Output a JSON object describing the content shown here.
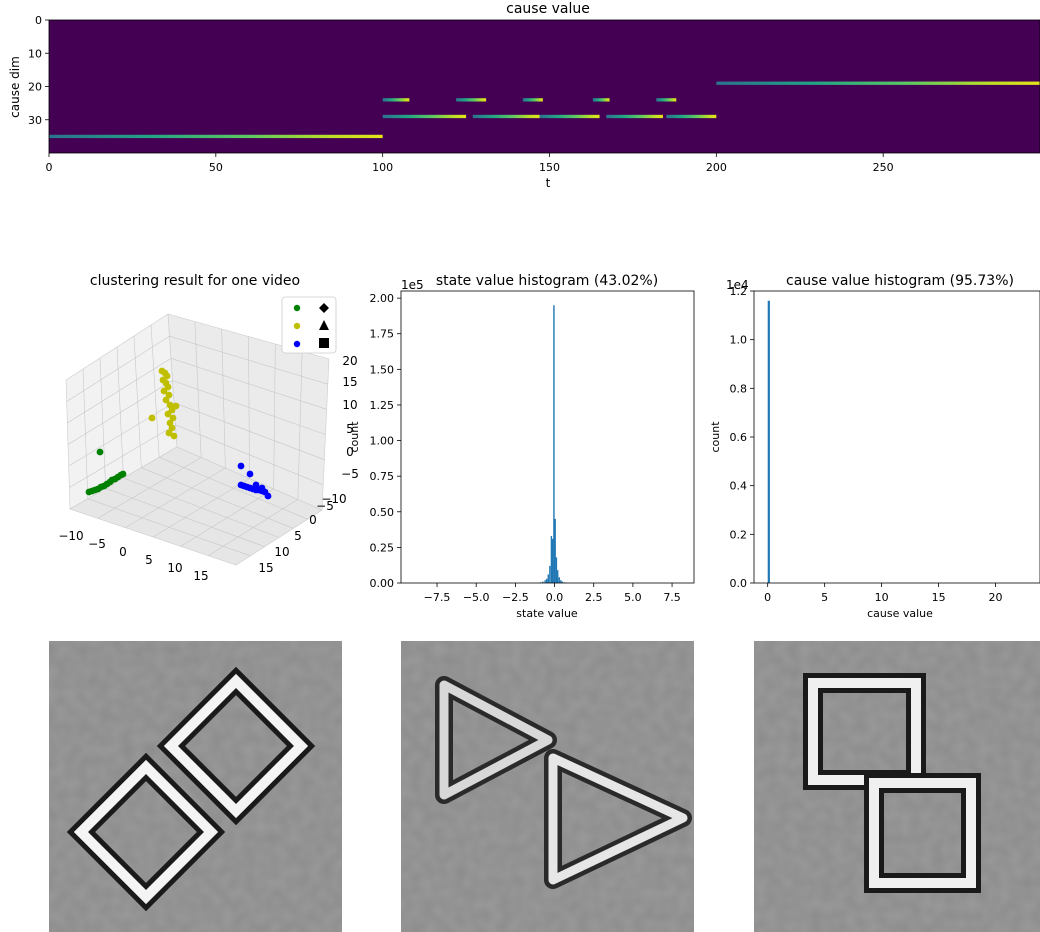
{
  "chart_data": [
    {
      "type": "heatmap",
      "title": "cause value",
      "xlabel": "t",
      "ylabel": "cause dim",
      "xlim": [
        0,
        297
      ],
      "ylim": [
        40,
        0
      ],
      "xticks": [
        "0",
        "50",
        "100",
        "150",
        "200",
        "250"
      ],
      "yticks": [
        "0",
        "10",
        "20",
        "30"
      ],
      "colormap": "viridis",
      "background_color": "#440154",
      "active_segments": [
        {
          "dim": 35,
          "t_start": 0,
          "t_end": 100
        },
        {
          "dim": 24,
          "t_start": 100,
          "t_end": 108
        },
        {
          "dim": 24,
          "t_start": 122,
          "t_end": 131
        },
        {
          "dim": 24,
          "t_start": 142,
          "t_end": 148
        },
        {
          "dim": 24,
          "t_start": 163,
          "t_end": 168
        },
        {
          "dim": 24,
          "t_start": 182,
          "t_end": 188
        },
        {
          "dim": 29,
          "t_start": 100,
          "t_end": 125
        },
        {
          "dim": 29,
          "t_start": 127,
          "t_end": 147
        },
        {
          "dim": 29,
          "t_start": 147,
          "t_end": 165
        },
        {
          "dim": 29,
          "t_start": 167,
          "t_end": 184
        },
        {
          "dim": 29,
          "t_start": 185,
          "t_end": 200
        },
        {
          "dim": 19,
          "t_start": 200,
          "t_end": 297
        }
      ]
    },
    {
      "type": "scatter",
      "title": "clustering result for one video",
      "projection": "3d",
      "xticks": [
        "−10",
        "−5",
        "0",
        "5",
        "10",
        "15"
      ],
      "yticks": [
        "−10",
        "−5",
        "0",
        "5",
        "10",
        "15"
      ],
      "zticks": [
        "−5",
        "0",
        "5",
        "10",
        "15",
        "20"
      ],
      "legend": [
        {
          "marker": "diamond",
          "color": "#000000"
        },
        {
          "marker": "triangle",
          "color": "#000000"
        },
        {
          "marker": "square",
          "color": "#000000"
        }
      ],
      "legend_placement": "top-right",
      "series": [
        {
          "color": "#008000"
        },
        {
          "color": "#bfbf00"
        },
        {
          "color": "#0000ff"
        }
      ]
    },
    {
      "type": "bar",
      "title": "state value histogram (43.02%)",
      "xlabel": "state value",
      "ylabel": "count",
      "scale_label": "1e5",
      "xlim": [
        -9.8,
        8.9
      ],
      "ylim": [
        0,
        2.05
      ],
      "xticks": [
        -7.5,
        -5.0,
        -2.5,
        0.0,
        2.5,
        5.0,
        7.5
      ],
      "xtick_labels": [
        "−7.5",
        "−5.0",
        "−2.5",
        "0.0",
        "2.5",
        "5.0",
        "7.5"
      ],
      "yticks": [
        0.0,
        0.25,
        0.5,
        0.75,
        1.0,
        1.25,
        1.5,
        1.75,
        2.0
      ],
      "ytick_labels": [
        "0.00",
        "0.25",
        "0.50",
        "0.75",
        "1.00",
        "1.25",
        "1.50",
        "1.75",
        "2.00"
      ],
      "color": "#1f77b4",
      "bins": [
        {
          "x": -0.9,
          "h": 0.005
        },
        {
          "x": -0.75,
          "h": 0.01
        },
        {
          "x": -0.6,
          "h": 0.02
        },
        {
          "x": -0.5,
          "h": 0.03
        },
        {
          "x": -0.4,
          "h": 0.06
        },
        {
          "x": -0.3,
          "h": 0.12
        },
        {
          "x": -0.2,
          "h": 0.33
        },
        {
          "x": -0.12,
          "h": 0.31
        },
        {
          "x": -0.04,
          "h": 1.95
        },
        {
          "x": 0.04,
          "h": 0.45
        },
        {
          "x": 0.12,
          "h": 0.18
        },
        {
          "x": 0.2,
          "h": 0.09
        },
        {
          "x": 0.3,
          "h": 0.04
        },
        {
          "x": 0.4,
          "h": 0.02
        },
        {
          "x": 0.5,
          "h": 0.01
        },
        {
          "x": 0.65,
          "h": 0.005
        }
      ]
    },
    {
      "type": "bar",
      "title": "cause value histogram (95.73%)",
      "xlabel": "cause value",
      "ylabel": "count",
      "scale_label": "1e4",
      "xlim": [
        -1.2,
        23.9
      ],
      "ylim": [
        0,
        1.2
      ],
      "xticks": [
        0,
        5,
        10,
        15,
        20
      ],
      "xtick_labels": [
        "0",
        "5",
        "10",
        "15",
        "20"
      ],
      "yticks": [
        0.0,
        0.2,
        0.4,
        0.6,
        0.8,
        1.0,
        1.2
      ],
      "ytick_labels": [
        "0.0",
        "0.2",
        "0.4",
        "0.6",
        "0.8",
        "1.0",
        "1.2"
      ],
      "color": "#1f77b4",
      "bins": [
        {
          "x": 0.1,
          "h": 1.16
        }
      ]
    }
  ],
  "image_panels": [
    {
      "name": "two-diamonds-image",
      "shape": "diamond"
    },
    {
      "name": "two-triangles-image",
      "shape": "triangle"
    },
    {
      "name": "two-squares-image",
      "shape": "square"
    }
  ]
}
